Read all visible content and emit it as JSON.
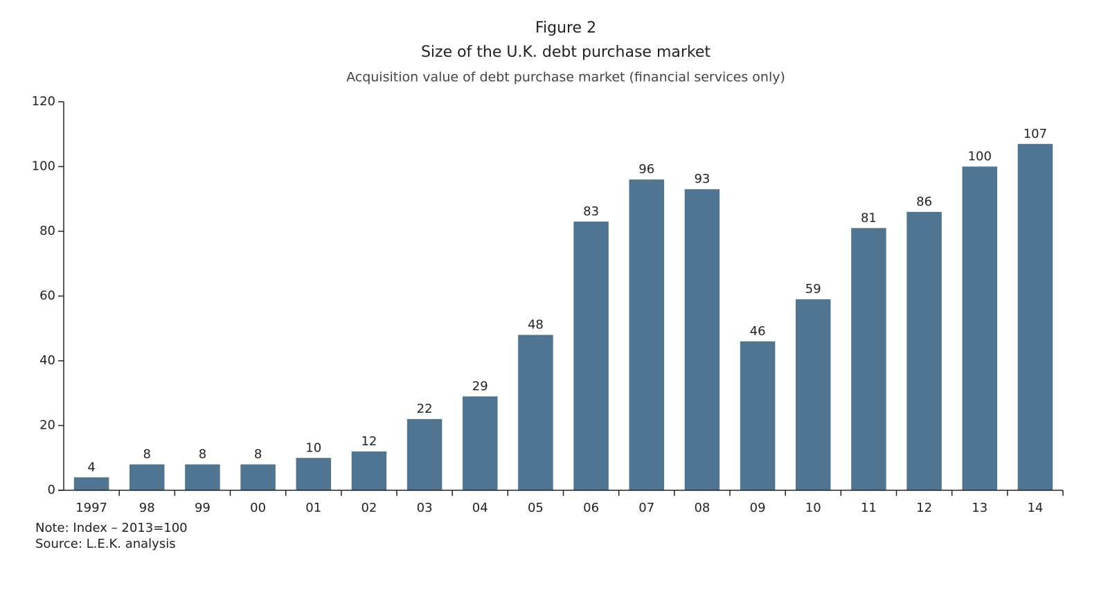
{
  "chart_data": {
    "type": "bar",
    "figure_label": "Figure 2",
    "title": "Size of the U.K. debt purchase market",
    "subtitle": "Acquisition value of debt purchase market (financial services only)",
    "categories": [
      "1997",
      "98",
      "99",
      "00",
      "01",
      "02",
      "03",
      "04",
      "05",
      "06",
      "07",
      "08",
      "09",
      "10",
      "11",
      "12",
      "13",
      "14"
    ],
    "values": [
      4,
      8,
      8,
      8,
      10,
      12,
      22,
      29,
      48,
      83,
      96,
      93,
      46,
      59,
      81,
      86,
      100,
      107
    ],
    "color": "#4f7592",
    "ylim": [
      0,
      120
    ],
    "yticks": [
      0,
      20,
      40,
      60,
      80,
      100,
      120
    ],
    "notes": [
      "Note: Index – 2013=100",
      "Source: L.E.K. analysis"
    ]
  }
}
